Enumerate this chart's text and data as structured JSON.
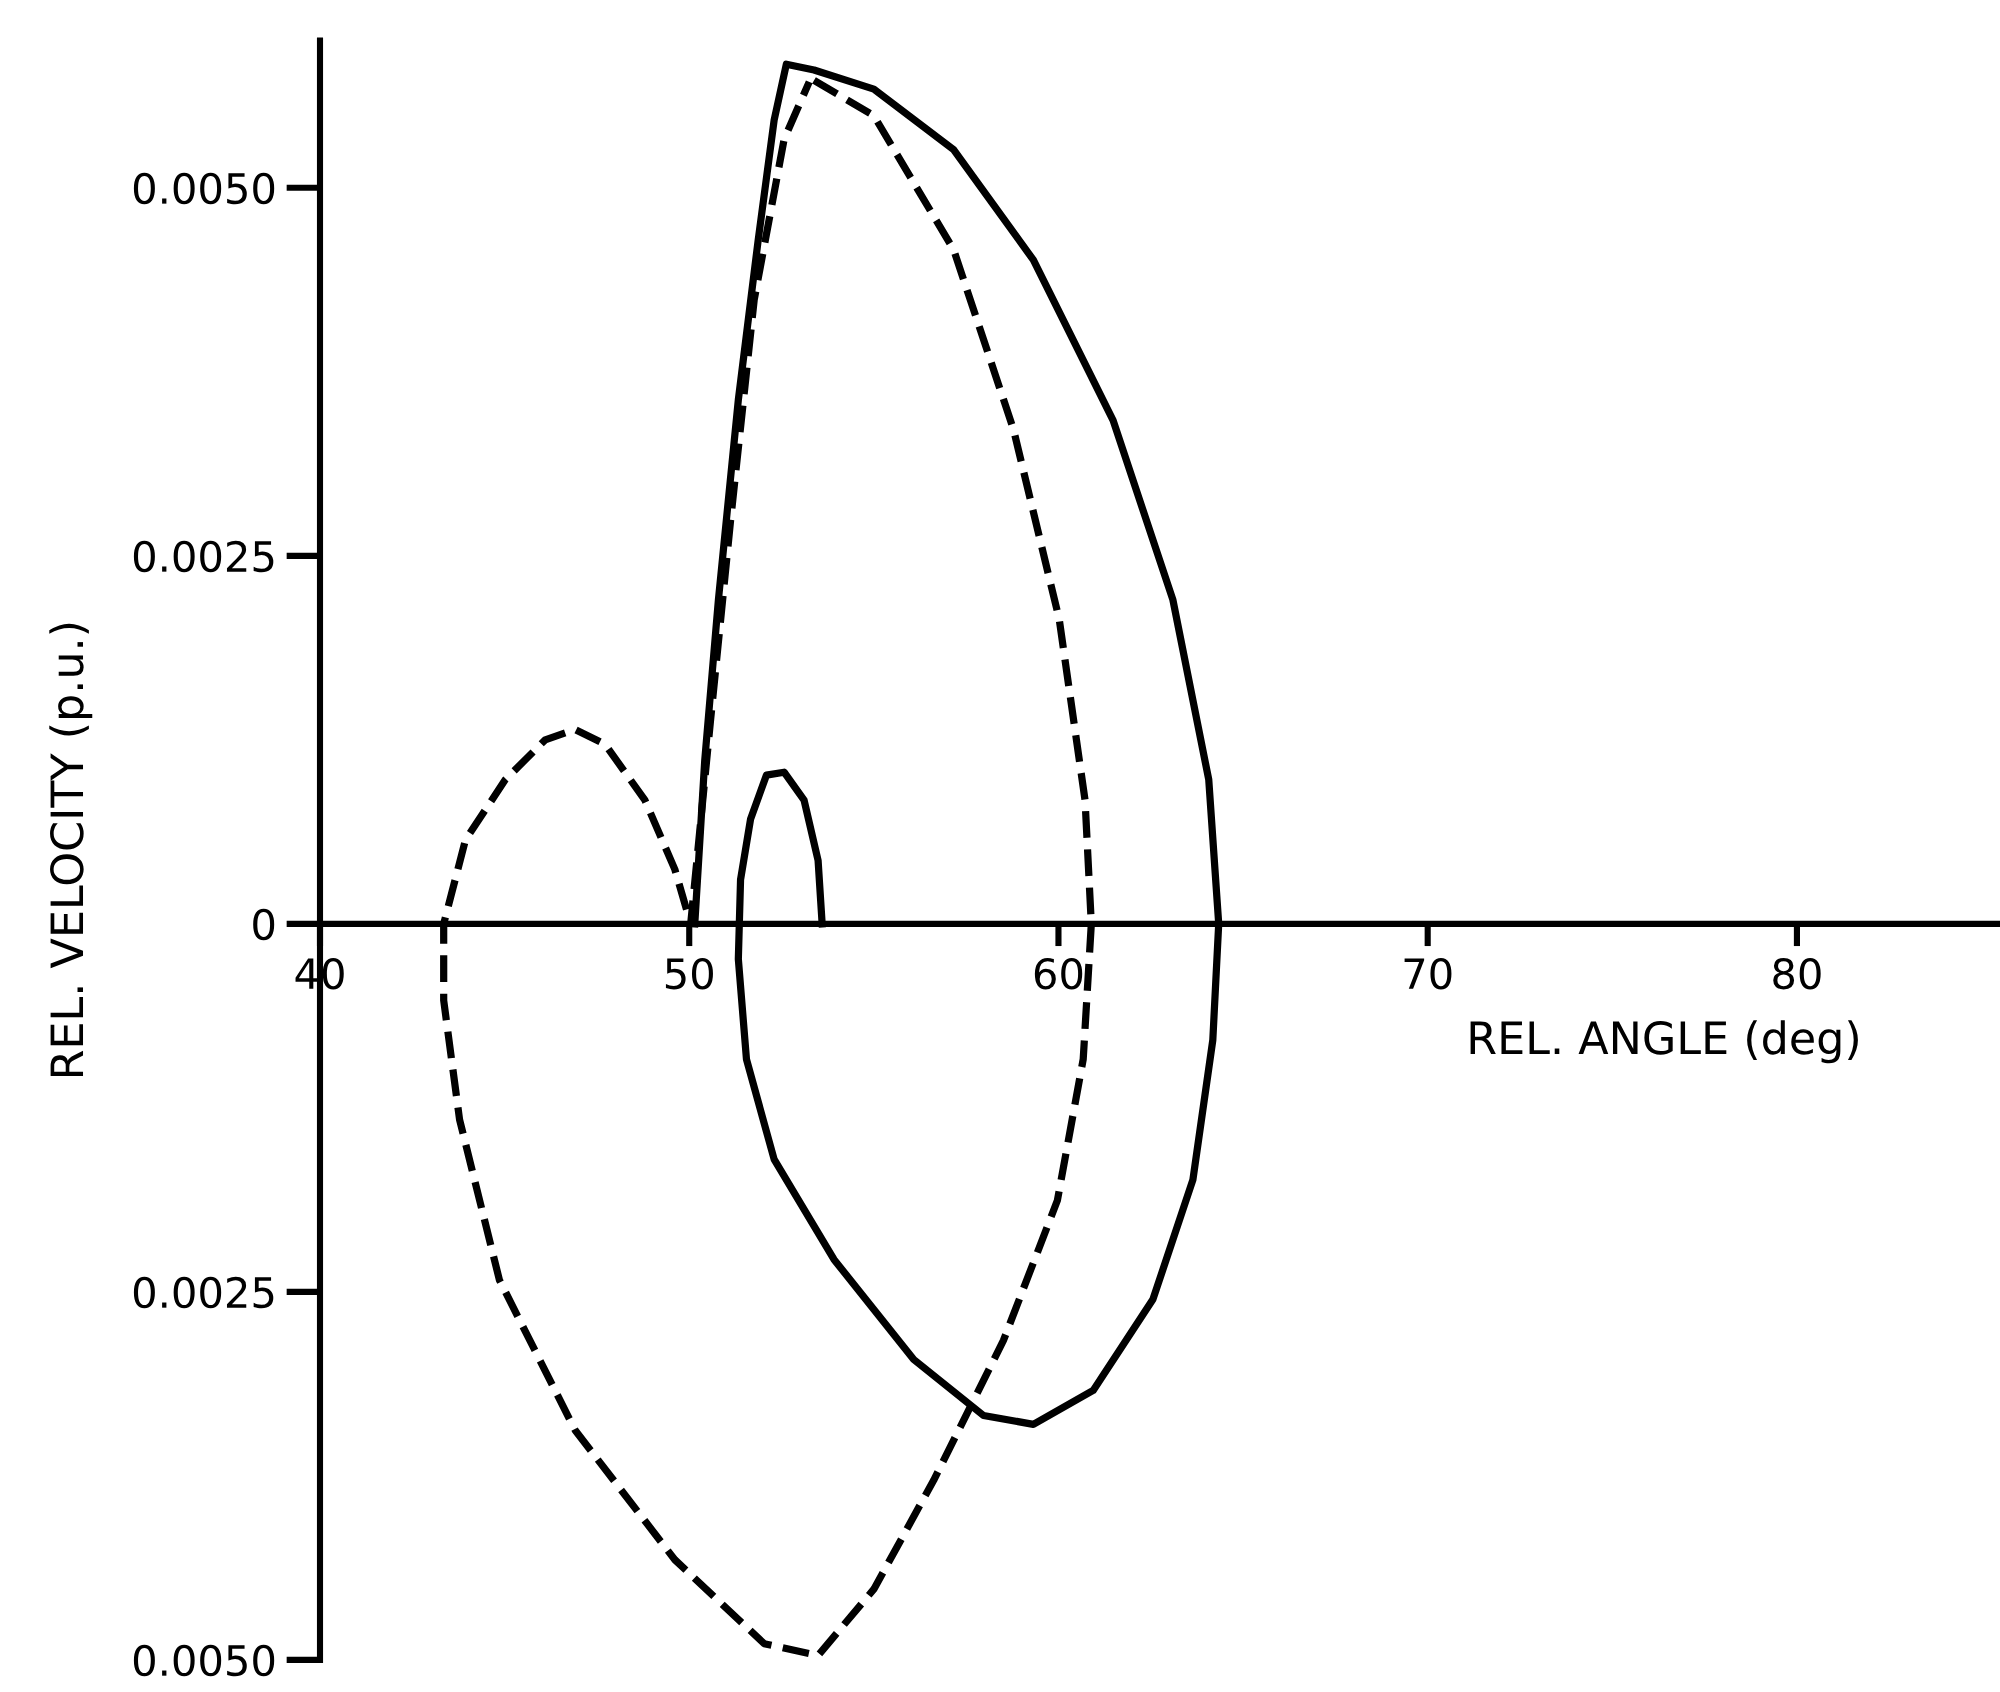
{
  "chart_data": {
    "type": "line",
    "xlabel": "REL. ANGLE (deg)",
    "ylabel": "REL. VELOCITY (p.u.)",
    "xlim": [
      40,
      85.5
    ],
    "ylim": [
      -0.005,
      0.006
    ],
    "xticks": [
      40,
      50,
      60,
      70,
      80
    ],
    "yticks": [
      {
        "value": -0.005,
        "label": "0.0050"
      },
      {
        "value": -0.0025,
        "label": "0.0025"
      },
      0,
      {
        "value": 0.0025,
        "label": "0.0025"
      },
      {
        "value": 0.005,
        "label": "0.0050"
      }
    ],
    "grid": false,
    "legend": false,
    "marker": "none",
    "series": [
      {
        "color": "#000000",
        "line_style": "solid",
        "x": [
          50.15,
          50.42,
          50.79,
          51.33,
          51.87,
          52.3,
          52.63,
          53.38,
          55.0,
          57.16,
          59.32,
          61.48,
          63.1,
          64.07,
          64.34,
          64.18,
          63.64,
          62.56,
          60.94,
          59.32,
          57.97,
          56.08,
          53.92,
          52.3,
          51.55,
          51.33,
          51.39,
          51.66,
          52.09,
          52.57,
          53.11,
          53.49,
          53.6
        ],
        "values": [
          0,
          0.00111,
          0.0022,
          0.00356,
          0.00465,
          0.00546,
          0.00584,
          0.0058,
          0.00567,
          0.00526,
          0.00451,
          0.00342,
          0.0022,
          0.00098,
          0,
          -0.00079,
          -0.00174,
          -0.00255,
          -0.00317,
          -0.0034,
          -0.00334,
          -0.00296,
          -0.00228,
          -0.0016,
          -0.00092,
          -0.00024,
          0.0003,
          0.00071,
          0.00101,
          0.00103,
          0.00084,
          0.00043,
          0
        ]
      },
      {
        "color": "#000000",
        "line_style": "dashed",
        "x": [
          53.38,
          55.0,
          57.16,
          58.78,
          60.02,
          60.72,
          60.89,
          60.67,
          59.97,
          58.51,
          56.62,
          55.0,
          53.49,
          52.03,
          49.61,
          46.91,
          44.86,
          43.78,
          43.35,
          43.35,
          43.94,
          45.02,
          46.1,
          46.91,
          47.72,
          48.8,
          49.61,
          50.04,
          50.58,
          51.12,
          51.76,
          52.57,
          53.25
        ],
        "values": [
          0.00573,
          0.00549,
          0.00458,
          0.00336,
          0.00207,
          0.00084,
          0,
          -0.00092,
          -0.00188,
          -0.00283,
          -0.00378,
          -0.00452,
          -0.00497,
          -0.00489,
          -0.00432,
          -0.00344,
          -0.00242,
          -0.00133,
          -0.00052,
          0,
          0.00057,
          0.00098,
          0.00125,
          0.00132,
          0.00122,
          0.00084,
          0.00037,
          0,
          0.00139,
          0.00274,
          0.00424,
          0.00533,
          0.00572
        ]
      }
    ]
  }
}
